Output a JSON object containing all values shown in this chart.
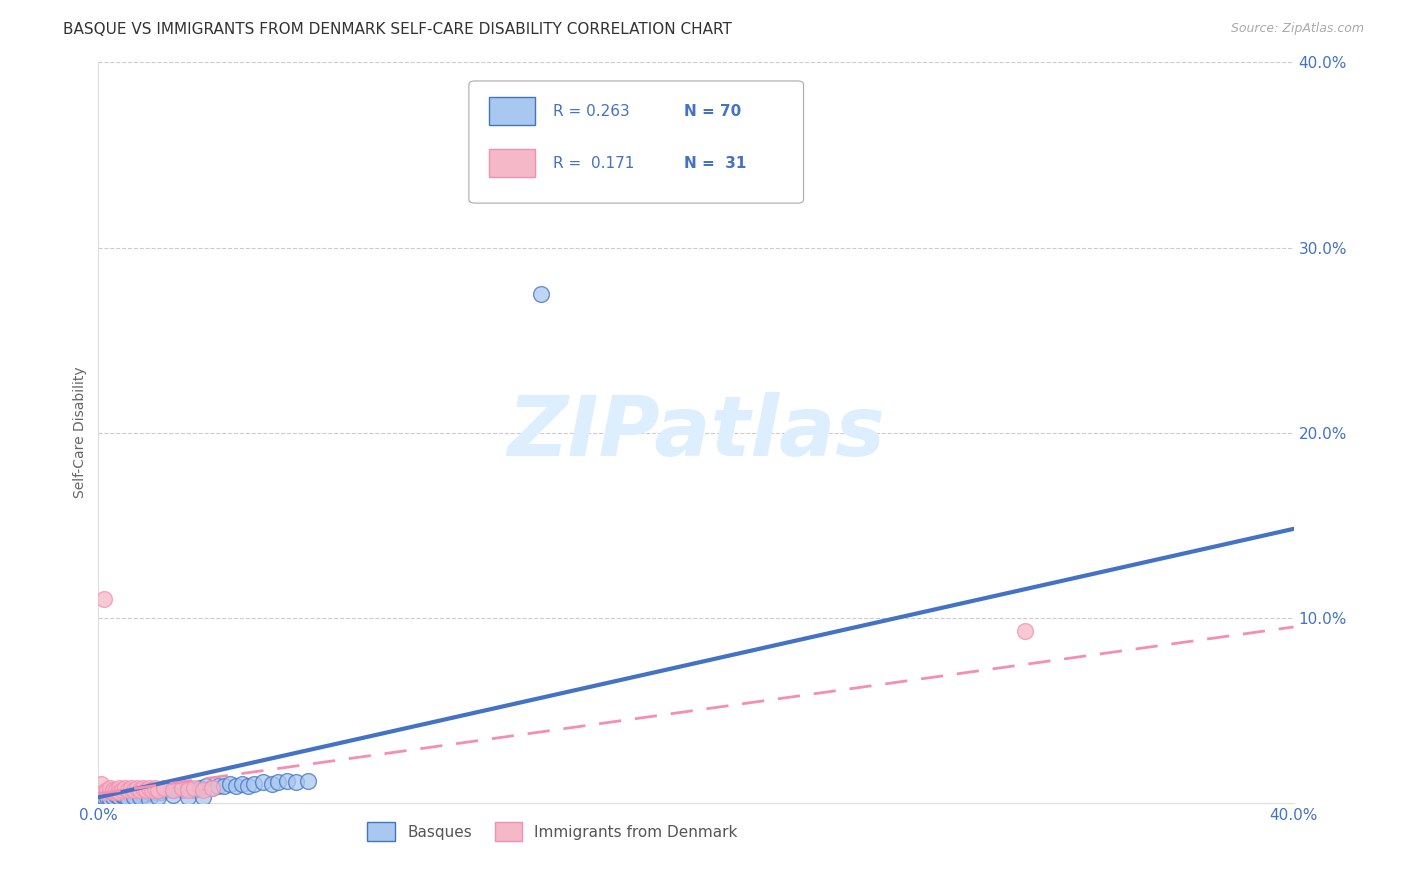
{
  "title": "BASQUE VS IMMIGRANTS FROM DENMARK SELF-CARE DISABILITY CORRELATION CHART",
  "source": "Source: ZipAtlas.com",
  "ylabel": "Self-Care Disability",
  "xlim": [
    0.0,
    0.4
  ],
  "ylim": [
    0.0,
    0.4
  ],
  "xticks": [
    0.0,
    0.1,
    0.2,
    0.3,
    0.4
  ],
  "yticks": [
    0.0,
    0.1,
    0.2,
    0.3,
    0.4
  ],
  "xtick_labels": [
    "0.0%",
    "",
    "",
    "",
    "40.0%"
  ],
  "ytick_labels": [
    "",
    "10.0%",
    "20.0%",
    "30.0%",
    "40.0%"
  ],
  "r_basque": 0.263,
  "n_basque": 70,
  "r_denmark": 0.171,
  "n_denmark": 31,
  "color_basque": "#a8c8f0",
  "color_denmark": "#f5b8c8",
  "color_basque_line": "#4472c4",
  "color_denmark_line": "#f48fb1",
  "watermark": "ZIPatlas",
  "watermark_color": "#ddeeff",
  "legend_r_color": "#4472c4",
  "basque_x": [
    0.001,
    0.002,
    0.002,
    0.003,
    0.003,
    0.004,
    0.004,
    0.005,
    0.005,
    0.006,
    0.006,
    0.007,
    0.007,
    0.008,
    0.008,
    0.009,
    0.01,
    0.01,
    0.011,
    0.012,
    0.013,
    0.014,
    0.015,
    0.016,
    0.017,
    0.018,
    0.019,
    0.02,
    0.021,
    0.022,
    0.023,
    0.025,
    0.026,
    0.028,
    0.03,
    0.032,
    0.034,
    0.036,
    0.038,
    0.04,
    0.042,
    0.044,
    0.046,
    0.048,
    0.05,
    0.052,
    0.055,
    0.058,
    0.06,
    0.063,
    0.066,
    0.07,
    0.001,
    0.002,
    0.003,
    0.004,
    0.005,
    0.006,
    0.007,
    0.008,
    0.009,
    0.01,
    0.012,
    0.014,
    0.017,
    0.02,
    0.025,
    0.03,
    0.035,
    0.148
  ],
  "basque_y": [
    0.004,
    0.005,
    0.003,
    0.006,
    0.004,
    0.005,
    0.003,
    0.006,
    0.004,
    0.005,
    0.003,
    0.006,
    0.004,
    0.005,
    0.003,
    0.006,
    0.007,
    0.004,
    0.005,
    0.006,
    0.005,
    0.006,
    0.007,
    0.005,
    0.006,
    0.007,
    0.006,
    0.007,
    0.006,
    0.007,
    0.008,
    0.007,
    0.008,
    0.007,
    0.008,
    0.007,
    0.008,
    0.009,
    0.008,
    0.009,
    0.009,
    0.01,
    0.009,
    0.01,
    0.009,
    0.01,
    0.011,
    0.01,
    0.011,
    0.012,
    0.011,
    0.012,
    0.002,
    0.003,
    0.003,
    0.002,
    0.003,
    0.004,
    0.003,
    0.004,
    0.003,
    0.002,
    0.003,
    0.003,
    0.002,
    0.003,
    0.004,
    0.003,
    0.003,
    0.275
  ],
  "denmark_x": [
    0.001,
    0.002,
    0.003,
    0.004,
    0.005,
    0.005,
    0.006,
    0.007,
    0.007,
    0.008,
    0.009,
    0.01,
    0.011,
    0.012,
    0.013,
    0.014,
    0.015,
    0.016,
    0.017,
    0.018,
    0.019,
    0.02,
    0.022,
    0.025,
    0.028,
    0.03,
    0.032,
    0.035,
    0.038,
    0.31,
    0.002
  ],
  "denmark_y": [
    0.01,
    0.006,
    0.007,
    0.008,
    0.006,
    0.007,
    0.007,
    0.008,
    0.006,
    0.007,
    0.008,
    0.007,
    0.008,
    0.007,
    0.008,
    0.007,
    0.008,
    0.007,
    0.008,
    0.007,
    0.008,
    0.007,
    0.008,
    0.007,
    0.008,
    0.007,
    0.008,
    0.007,
    0.008,
    0.093,
    0.11
  ],
  "basque_line_x0": 0.0,
  "basque_line_x1": 0.4,
  "basque_line_y0": 0.003,
  "basque_line_y1": 0.148,
  "denmark_line_x0": 0.0,
  "denmark_line_x1": 0.4,
  "denmark_line_y0": 0.005,
  "denmark_line_y1": 0.095
}
